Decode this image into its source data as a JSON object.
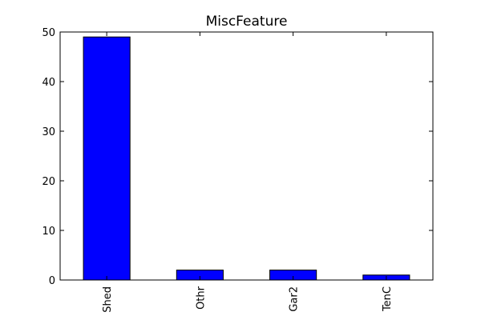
{
  "chart_data": {
    "type": "bar",
    "title": "MiscFeature",
    "xlabel": "",
    "ylabel": "",
    "categories": [
      "Shed",
      "Othr",
      "Gar2",
      "TenC"
    ],
    "values": [
      49,
      2,
      2,
      1
    ],
    "ylim": [
      0,
      50
    ],
    "yticks": [
      0,
      10,
      20,
      30,
      40,
      50
    ],
    "grid": false,
    "legend": "none",
    "bar_color": "#0000ff",
    "edge_color": "#000000"
  }
}
